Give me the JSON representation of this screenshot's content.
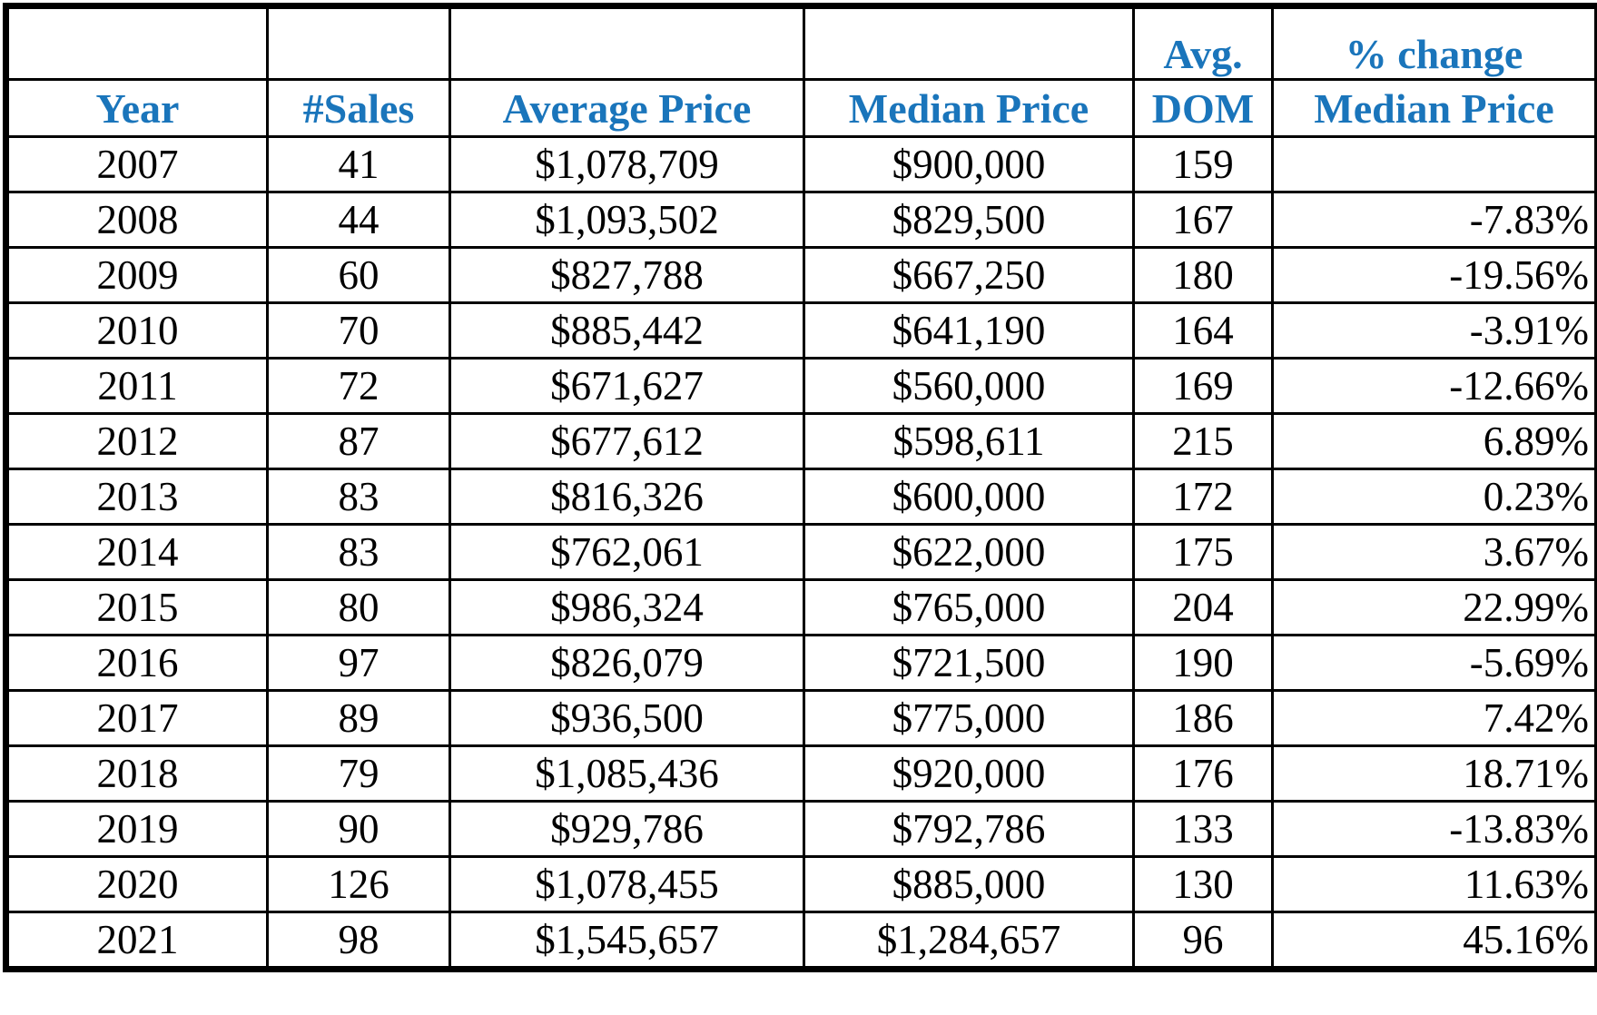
{
  "table": {
    "columns": [
      {
        "label": "Year"
      },
      {
        "label": "#Sales"
      },
      {
        "label": "Average Price"
      },
      {
        "label": "Median Price"
      },
      {
        "label_top": "Avg.",
        "label": "DOM"
      },
      {
        "label_top": "% change",
        "label": "Median Price"
      }
    ],
    "rows": [
      [
        "2007",
        "41",
        "$1,078,709",
        "$900,000",
        "159",
        null
      ],
      [
        "2008",
        "44",
        "$1,093,502",
        "$829,500",
        "167",
        "-7.83%"
      ],
      [
        "2009",
        "60",
        "$827,788",
        "$667,250",
        "180",
        "-19.56%"
      ],
      [
        "2010",
        "70",
        "$885,442",
        "$641,190",
        "164",
        "-3.91%"
      ],
      [
        "2011",
        "72",
        "$671,627",
        "$560,000",
        "169",
        "-12.66%"
      ],
      [
        "2012",
        "87",
        "$677,612",
        "$598,611",
        "215",
        "6.89%"
      ],
      [
        "2013",
        "83",
        "$816,326",
        "$600,000",
        "172",
        "0.23%"
      ],
      [
        "2014",
        "83",
        "$762,061",
        "$622,000",
        "175",
        "3.67%"
      ],
      [
        "2015",
        "80",
        "$986,324",
        "$765,000",
        "204",
        "22.99%"
      ],
      [
        "2016",
        "97",
        "$826,079",
        "$721,500",
        "190",
        "-5.69%"
      ],
      [
        "2017",
        "89",
        "$936,500",
        "$775,000",
        "186",
        "7.42%"
      ],
      [
        "2018",
        "79",
        "$1,085,436",
        "$920,000",
        "176",
        "18.71%"
      ],
      [
        "2019",
        "90",
        "$929,786",
        "$792,786",
        "133",
        "-13.83%"
      ],
      [
        "2020",
        "126",
        "$1,078,455",
        "$885,000",
        "130",
        "11.63%"
      ],
      [
        "2021",
        "98",
        "$1,545,657",
        "$1,284,657",
        "96",
        "45.16%"
      ]
    ]
  }
}
